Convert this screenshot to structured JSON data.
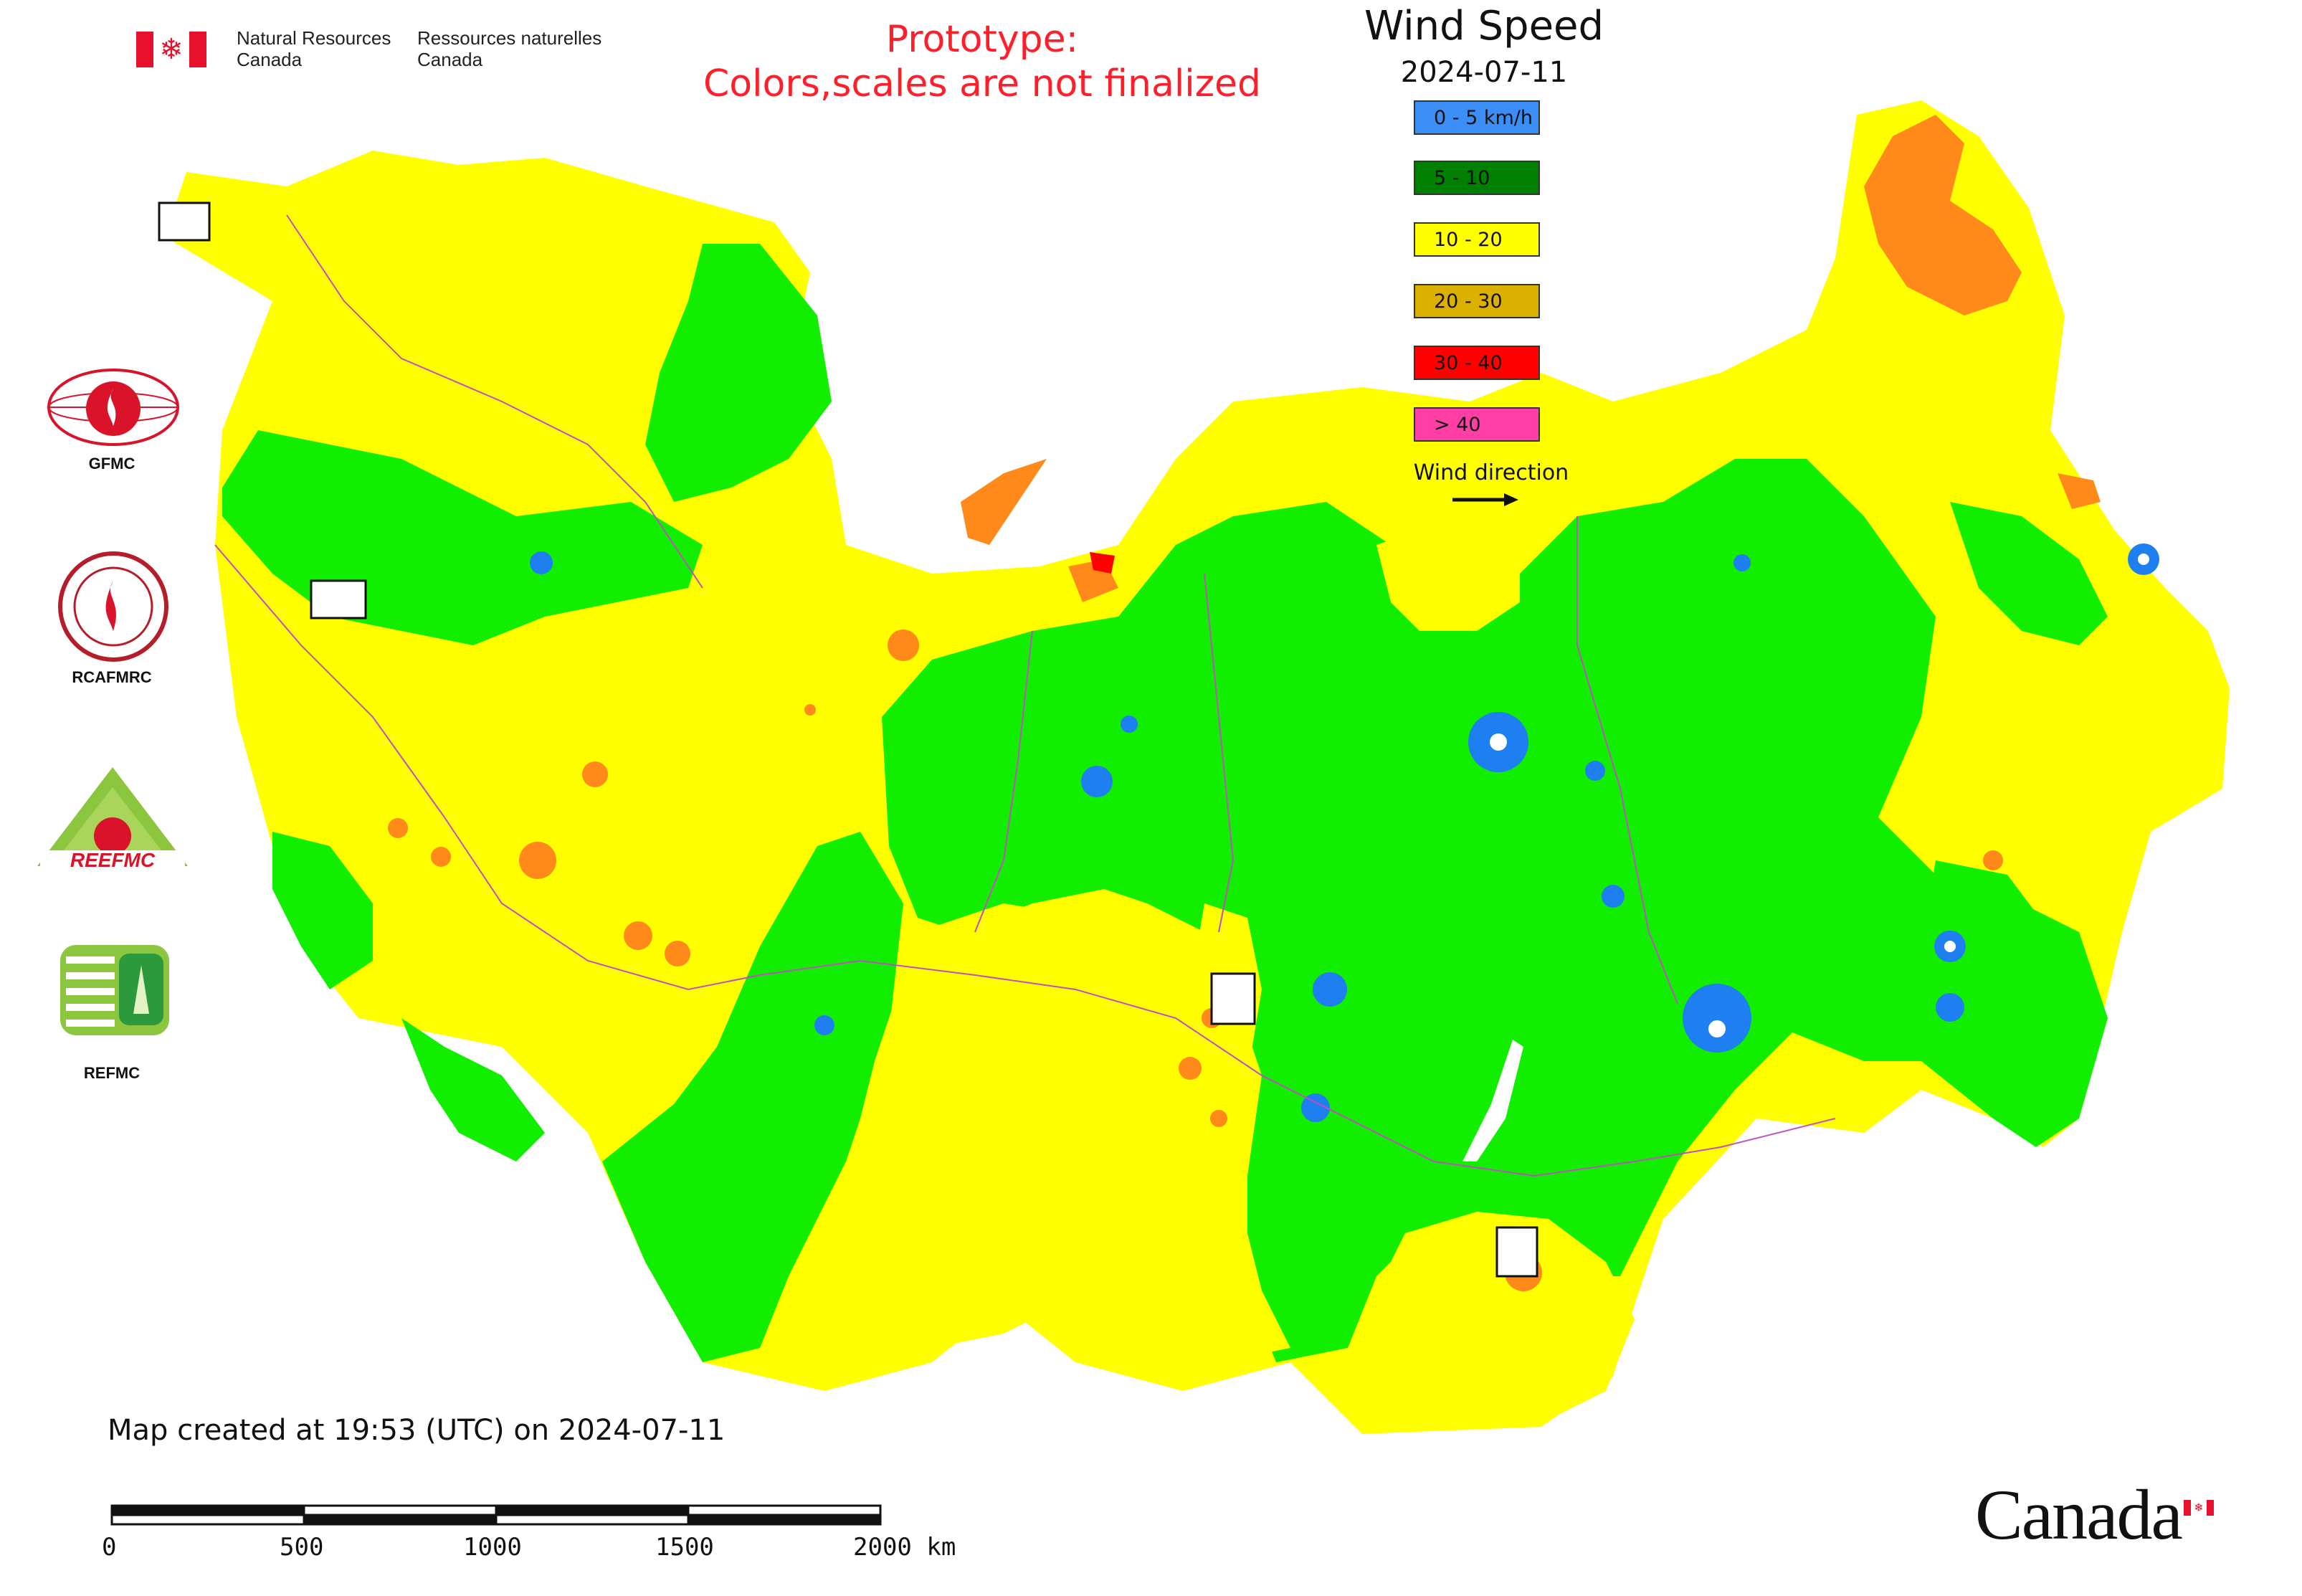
{
  "header": {
    "nrcan_en_line1": "Natural Resources",
    "nrcan_en_line2": "Canada",
    "nrcan_fr_line1": "Ressources naturelles",
    "nrcan_fr_line2": "Canada",
    "prototype_line1": "Prototype:",
    "prototype_line2": "Colors,scales are not finalized"
  },
  "legend": {
    "title": "Wind Speed",
    "date": "2024-07-11",
    "items": [
      {
        "label": "0 - 5 km/h",
        "color": "#3a8ef6"
      },
      {
        "label": "5 - 10",
        "color": "#008000"
      },
      {
        "label": "10 - 20",
        "color": "#ffff00"
      },
      {
        "label": "20 - 30",
        "color": "#dcb000"
      },
      {
        "label": "30 - 40",
        "color": "#ff0000"
      },
      {
        "label": "> 40",
        "color": "#ff3fa6"
      }
    ],
    "wind_direction_label": "Wind direction"
  },
  "map_colors": {
    "green_zone": "#11ee00",
    "yellow_zone": "#ffff00",
    "orange_zone": "#ff8a1a",
    "blue_spot": "#1e7ff0",
    "border": "#c050c0"
  },
  "organizations": [
    {
      "label": "GFMC",
      "icon": "gfmc-logo"
    },
    {
      "label": "RCAFMRC",
      "icon": "rcafmrc-logo"
    },
    {
      "label": "REEFMC",
      "icon": "reefmc-logo"
    },
    {
      "label": "REFMC",
      "icon": "refmc-logo"
    }
  ],
  "footer": {
    "created": "Map created at 19:53 (UTC) on 2024-07-11",
    "scale_ticks": [
      "0",
      "500",
      "1000",
      "1500",
      "2000 km"
    ],
    "wordmark": "Canada"
  }
}
